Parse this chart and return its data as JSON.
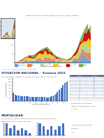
{
  "title_top": "Datos sobre la evolucion segun region del pais (SE 14/2021), Argentina",
  "section1_title": "SITUACION NACIONAL - Semana 2021",
  "section1_subtitle": "Casos confirmados por semana epidemiologica de casos de incidencia - Total pais 2021",
  "section2_title": "MORTALIDAD",
  "section2_subtitle": "Fallecidos confirmados por semana de fallecimiento segun region del pais (SE 17/2021), Argentina",
  "area_colors": [
    "#5b9bd5",
    "#ed7d31",
    "#a9d18e",
    "#ffc000",
    "#c00000",
    "#70ad47"
  ],
  "bar_color": "#4472c4",
  "bar_highlight_color": "#2e75b6",
  "bg_color": "#ffffff",
  "header_bg": "#1f3864",
  "section_header_color": "#1f3864",
  "footer_bg": "#1f3864",
  "pdf_stamp_color": "#2e75b6",
  "small_chart_bg": "#dce6f1",
  "table_n_rows": 14,
  "mortality_bar_left": [
    5,
    3,
    4,
    2,
    3,
    2,
    1
  ],
  "mortality_bar_right": [
    4,
    3,
    2,
    3,
    2,
    3,
    4
  ]
}
